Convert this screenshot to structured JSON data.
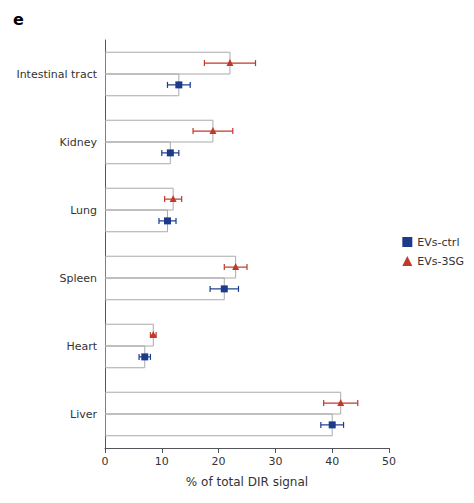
{
  "chart_data": {
    "type": "bar",
    "orientation": "horizontal",
    "title": "e",
    "categories": [
      "Intestinal tract",
      "Kidney",
      "Lung",
      "Spleen",
      "Heart",
      "Liver"
    ],
    "xlabel": "% of total DIR signal",
    "xlim": [
      0,
      50
    ],
    "xticks": [
      0,
      10,
      20,
      30,
      40,
      50
    ],
    "grid": false,
    "legend": "right",
    "series": [
      {
        "name": "EVs-ctrl",
        "color": "#1a3a8a",
        "marker": "square",
        "values": [
          13.0,
          11.5,
          11.0,
          21.0,
          7.0,
          40.0
        ],
        "errors": [
          2.0,
          1.5,
          1.5,
          2.5,
          1.0,
          2.0
        ]
      },
      {
        "name": "EVs-3SG",
        "color": "#c0392b",
        "marker": "triangle",
        "values": [
          22.0,
          19.0,
          12.0,
          23.0,
          8.5,
          41.5
        ],
        "errors": [
          4.5,
          3.5,
          1.5,
          2.0,
          0.5,
          3.0
        ]
      }
    ]
  }
}
